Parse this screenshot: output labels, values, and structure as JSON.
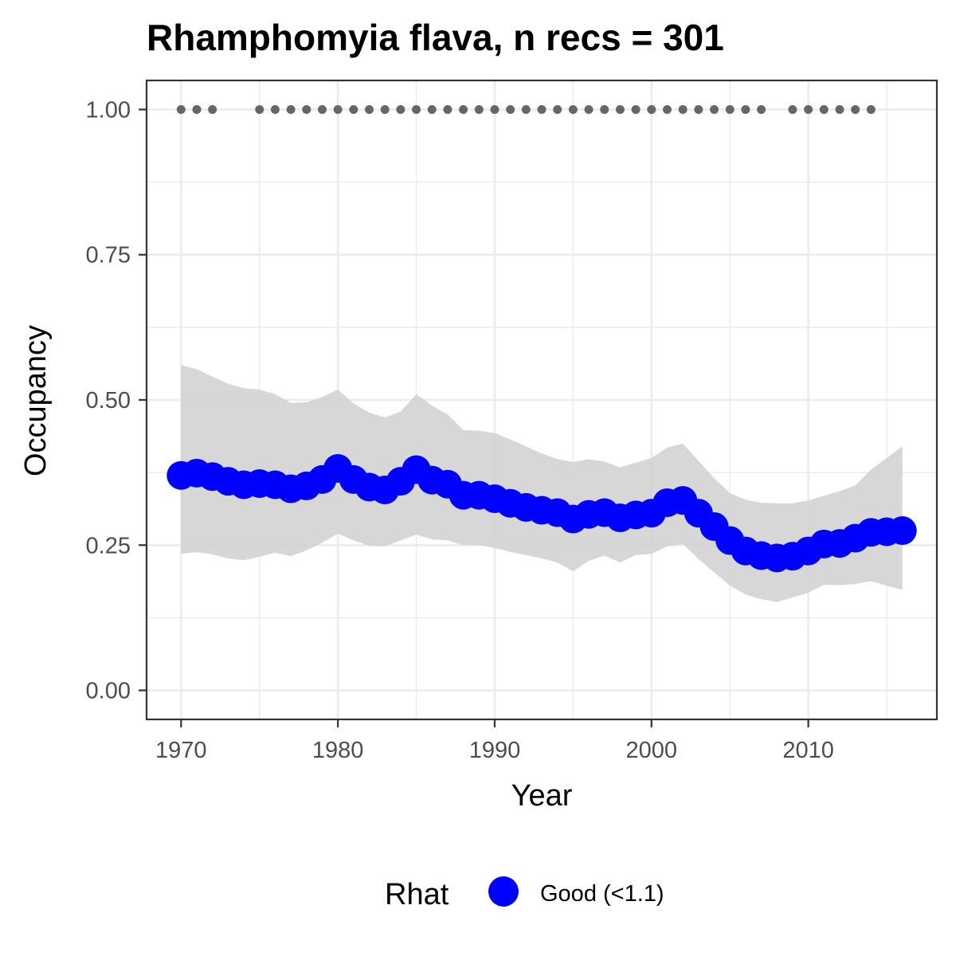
{
  "chart_data": {
    "type": "line",
    "title": "Rhamphomyia flava, n recs = 301",
    "xlabel": "Year",
    "ylabel": "Occupancy",
    "xlim": [
      1967.8,
      2018.2
    ],
    "ylim": [
      -0.05,
      1.05
    ],
    "x_ticks": [
      1970,
      1980,
      1990,
      2000,
      2010
    ],
    "x_tick_labels": [
      "1970",
      "1980",
      "1990",
      "2000",
      "2010"
    ],
    "y_ticks": [
      0,
      0.25,
      0.5,
      0.75,
      1
    ],
    "y_tick_labels": [
      "0.00",
      "0.25",
      "0.50",
      "0.75",
      "1.00"
    ],
    "grid": true,
    "legend": {
      "title": "Rhat",
      "position": "bottom",
      "entries": [
        {
          "label": "Good (<1.1)",
          "color": "#0000FF"
        }
      ]
    },
    "colors": {
      "line": "#0000FF",
      "ribbon": "#d3d3d3",
      "records": "#666666",
      "panel_border": "#333333",
      "grid": "#ebebeb"
    },
    "series": [
      {
        "x": [
          1970,
          1971,
          1972,
          1973,
          1974,
          1975,
          1976,
          1977,
          1978,
          1979,
          1980,
          1981,
          1982,
          1983,
          1984,
          1985,
          1986,
          1987,
          1988,
          1989,
          1990,
          1991,
          1992,
          1993,
          1994,
          1995,
          1996,
          1997,
          1998,
          1999,
          2000,
          2001,
          2002,
          2003,
          2004,
          2005,
          2006,
          2007,
          2008,
          2009,
          2010,
          2011,
          2012,
          2013,
          2014,
          2015,
          2016
        ],
        "values": [
          0.37,
          0.374,
          0.368,
          0.36,
          0.354,
          0.356,
          0.354,
          0.347,
          0.352,
          0.363,
          0.382,
          0.363,
          0.35,
          0.345,
          0.36,
          0.38,
          0.362,
          0.355,
          0.336,
          0.336,
          0.33,
          0.322,
          0.315,
          0.31,
          0.306,
          0.295,
          0.303,
          0.306,
          0.297,
          0.302,
          0.305,
          0.323,
          0.327,
          0.305,
          0.282,
          0.258,
          0.24,
          0.232,
          0.228,
          0.231,
          0.24,
          0.252,
          0.253,
          0.262,
          0.272,
          0.273,
          0.275
        ],
        "upper": [
          0.56,
          0.553,
          0.54,
          0.528,
          0.52,
          0.518,
          0.51,
          0.495,
          0.496,
          0.505,
          0.518,
          0.494,
          0.478,
          0.47,
          0.48,
          0.51,
          0.49,
          0.475,
          0.448,
          0.447,
          0.443,
          0.432,
          0.42,
          0.408,
          0.398,
          0.393,
          0.398,
          0.394,
          0.384,
          0.392,
          0.4,
          0.418,
          0.425,
          0.395,
          0.365,
          0.34,
          0.328,
          0.323,
          0.322,
          0.322,
          0.327,
          0.335,
          0.343,
          0.353,
          0.38,
          0.4,
          0.42
        ],
        "lower": [
          0.235,
          0.238,
          0.234,
          0.227,
          0.224,
          0.23,
          0.237,
          0.231,
          0.241,
          0.254,
          0.27,
          0.258,
          0.249,
          0.248,
          0.258,
          0.268,
          0.26,
          0.258,
          0.25,
          0.25,
          0.245,
          0.238,
          0.233,
          0.227,
          0.22,
          0.205,
          0.223,
          0.232,
          0.22,
          0.233,
          0.235,
          0.248,
          0.252,
          0.226,
          0.203,
          0.18,
          0.165,
          0.157,
          0.152,
          0.16,
          0.168,
          0.182,
          0.181,
          0.183,
          0.188,
          0.18,
          0.173
        ]
      }
    ],
    "records_y": 1.0,
    "record_years": [
      1970,
      1971,
      1972,
      1975,
      1976,
      1977,
      1978,
      1979,
      1980,
      1981,
      1982,
      1983,
      1984,
      1985,
      1986,
      1987,
      1988,
      1989,
      1990,
      1991,
      1992,
      1993,
      1994,
      1995,
      1996,
      1997,
      1998,
      1999,
      2000,
      2001,
      2002,
      2003,
      2004,
      2005,
      2006,
      2007,
      2009,
      2010,
      2011,
      2012,
      2013,
      2014
    ]
  }
}
